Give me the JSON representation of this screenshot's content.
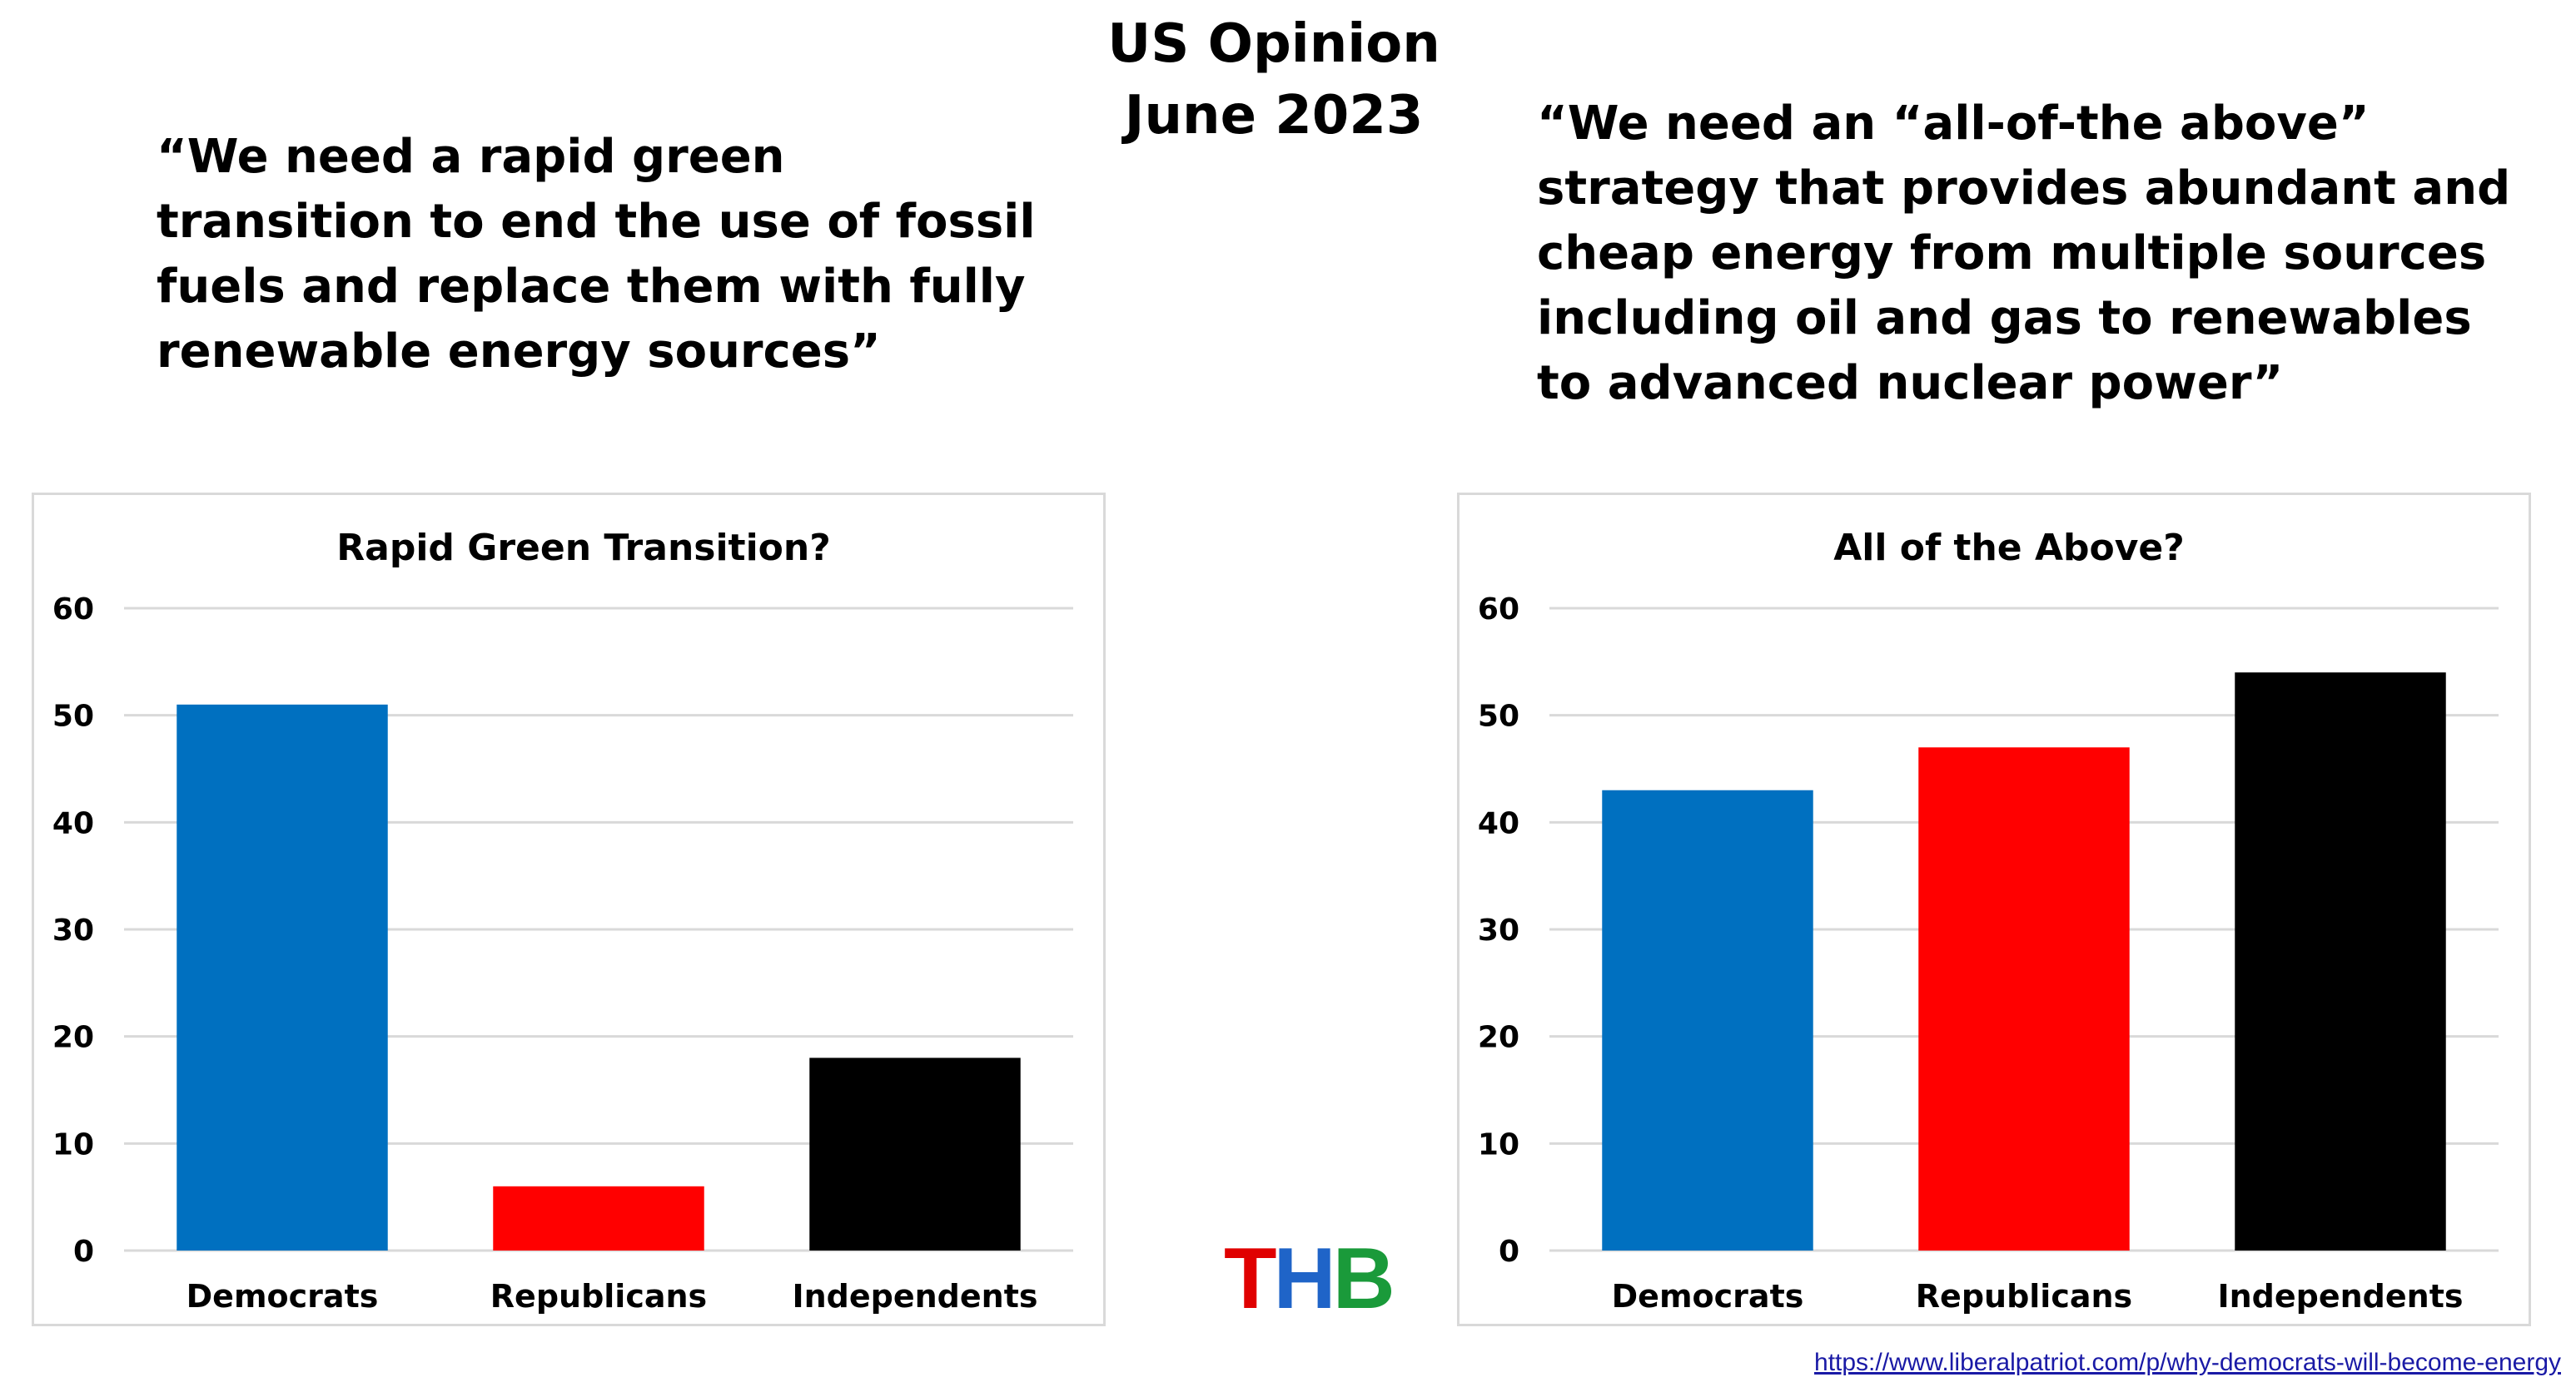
{
  "header": {
    "title_line1": "US Opinion",
    "title_line2": "June 2023"
  },
  "quotes": {
    "left": [
      "“We need a rapid green",
      "transition to end the use of fossil",
      "fuels and replace them with fully",
      "renewable energy sources”"
    ],
    "right": [
      "“We need an “all-of-the above”",
      "strategy that provides abundant and",
      "cheap energy from multiple sources",
      "including oil and gas to renewables",
      "to advanced nuclear power”"
    ]
  },
  "logo": {
    "letters": [
      "T",
      "H",
      "B"
    ],
    "colors": [
      "#e00000",
      "#1f64c8",
      "#1a9a3a"
    ]
  },
  "source": {
    "url": "https://www.liberalpatriot.com/p/why-democrats-will-become-energy"
  },
  "chart_data": [
    {
      "type": "bar",
      "title": "Rapid Green Transition?",
      "categories": [
        "Democrats",
        "Republicans",
        "Independents"
      ],
      "values": [
        51,
        6,
        18
      ],
      "colors": [
        "#0070c0",
        "#ff0000",
        "#000000"
      ],
      "ylim": [
        0,
        60
      ],
      "yticks": [
        0,
        10,
        20,
        30,
        40,
        50,
        60
      ],
      "xlabel": "",
      "ylabel": "",
      "grid": true
    },
    {
      "type": "bar",
      "title": "All of the Above?",
      "categories": [
        "Democrats",
        "Republicans",
        "Independents"
      ],
      "values": [
        43,
        47,
        54
      ],
      "colors": [
        "#0070c0",
        "#ff0000",
        "#000000"
      ],
      "ylim": [
        0,
        60
      ],
      "yticks": [
        0,
        10,
        20,
        30,
        40,
        50,
        60
      ],
      "xlabel": "",
      "ylabel": "",
      "grid": true
    }
  ]
}
